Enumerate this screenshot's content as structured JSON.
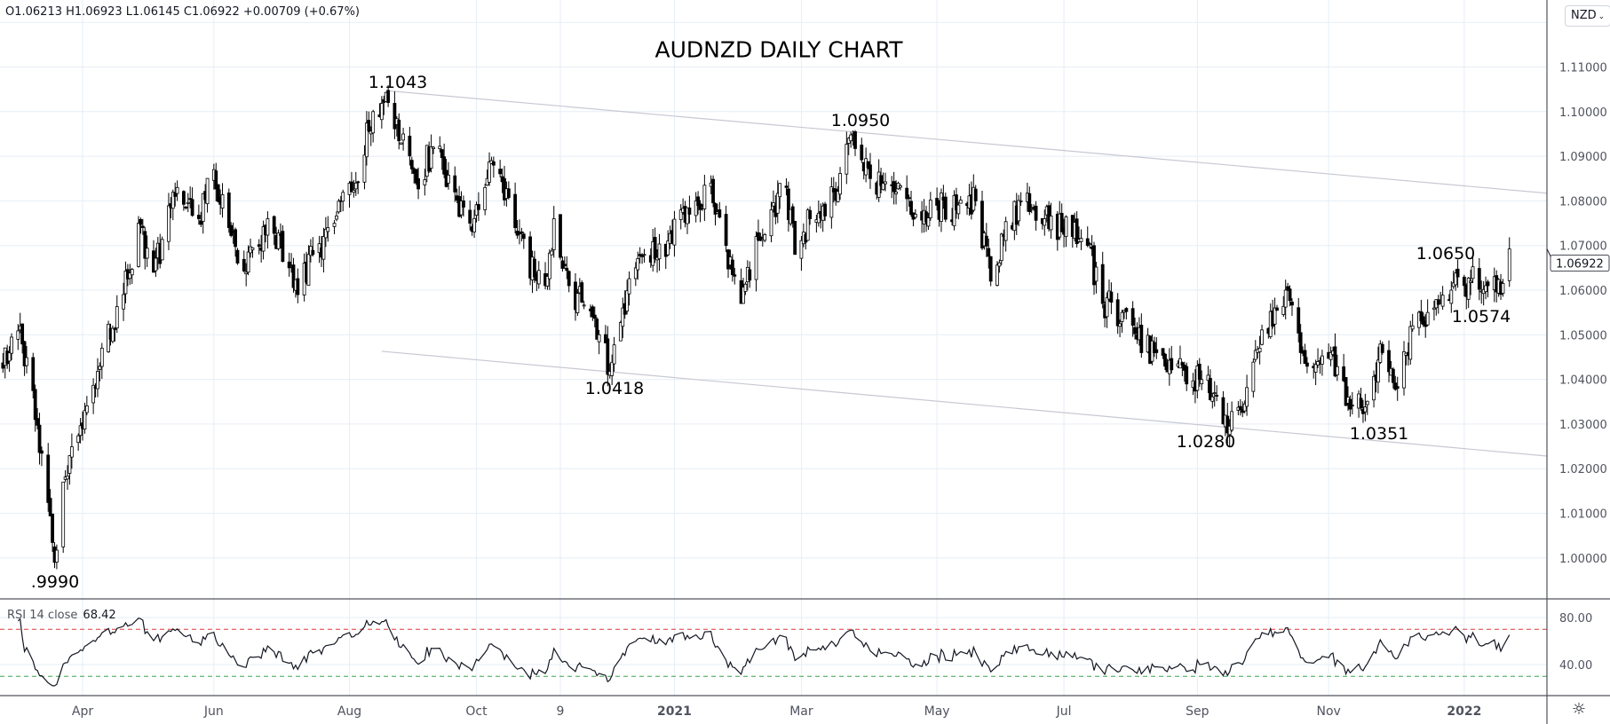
{
  "legend": {
    "ohlc_text": "O1.06213  H1.06923  L1.06145  C1.06922  +0.00709 (+0.67%)"
  },
  "title": "AUDNZD DAILY CHART",
  "currency_button": "NZD",
  "currency_button_icon": "chevron-down-icon",
  "settings_icon": "gear-icon",
  "annotations": [
    "1.1043",
    "1.0950",
    "1.0418",
    ".9990",
    "1.0280",
    "1.0351",
    "1.0650",
    "1.0574"
  ],
  "rsi_legend": {
    "label": "RSI 14 close",
    "value": "68.42"
  },
  "colors": {
    "grid": "#e6eef5",
    "candle": "#000000",
    "trendline": "#c8c8d4",
    "overbought": "#e03a3a",
    "oversold": "#3aa64a",
    "rsi_line": "#131722"
  },
  "chart_data": [
    {
      "type": "candlestick",
      "title": "AUDNZD DAILY CHART",
      "ylim": [
        0.99,
        1.12
      ],
      "grid": true,
      "y_ticks": [
        "1.11000",
        "1.10000",
        "1.09000",
        "1.08000",
        "1.07000",
        "1.06000",
        "1.05000",
        "1.04000",
        "1.03000",
        "1.02000",
        "1.01000",
        "1.00000"
      ],
      "y_tick_values": [
        1.11,
        1.1,
        1.09,
        1.08,
        1.07,
        1.06,
        1.05,
        1.04,
        1.03,
        1.02,
        1.01,
        1.0
      ],
      "last_price_label": "1.06922",
      "x_ticks": [
        {
          "label": "Apr",
          "date": "2020-04-01",
          "bold": false
        },
        {
          "label": "Jun",
          "date": "2020-06-01",
          "bold": false
        },
        {
          "label": "Aug",
          "date": "2020-08-03",
          "bold": false
        },
        {
          "label": "Oct",
          "date": "2020-10-01",
          "bold": false
        },
        {
          "label": "9",
          "date": "2020-11-09",
          "bold": false
        },
        {
          "label": "2021",
          "date": "2021-01-01",
          "bold": true
        },
        {
          "label": "Mar",
          "date": "2021-03-01",
          "bold": false
        },
        {
          "label": "May",
          "date": "2021-05-03",
          "bold": false
        },
        {
          "label": "Jul",
          "date": "2021-07-01",
          "bold": false
        },
        {
          "label": "Sep",
          "date": "2021-09-01",
          "bold": false
        },
        {
          "label": "Nov",
          "date": "2021-11-01",
          "bold": false
        },
        {
          "label": "2022",
          "date": "2022-01-03",
          "bold": true
        }
      ],
      "close_path": [
        [
          "2020-02-24",
          1.0425
        ],
        [
          "2020-03-03",
          1.052
        ],
        [
          "2020-03-10",
          1.031
        ],
        [
          "2020-03-19",
          0.999
        ],
        [
          "2020-03-23",
          1.017
        ],
        [
          "2020-04-01",
          1.029
        ],
        [
          "2020-04-10",
          1.047
        ],
        [
          "2020-04-20",
          1.059
        ],
        [
          "2020-04-27",
          1.075
        ],
        [
          "2020-05-04",
          1.064
        ],
        [
          "2020-05-15",
          1.083
        ],
        [
          "2020-05-25",
          1.076
        ],
        [
          "2020-06-01",
          1.087
        ],
        [
          "2020-06-08",
          1.074
        ],
        [
          "2020-06-16",
          1.064
        ],
        [
          "2020-06-26",
          1.076
        ],
        [
          "2020-07-06",
          1.065
        ],
        [
          "2020-07-10",
          1.059
        ],
        [
          "2020-07-17",
          1.068
        ],
        [
          "2020-07-27",
          1.075
        ],
        [
          "2020-08-06",
          1.084
        ],
        [
          "2020-08-14",
          1.1
        ],
        [
          "2020-08-20",
          1.1043
        ],
        [
          "2020-08-27",
          1.093
        ],
        [
          "2020-09-03",
          1.084
        ],
        [
          "2020-09-11",
          1.092
        ],
        [
          "2020-09-21",
          1.082
        ],
        [
          "2020-09-28",
          1.075
        ],
        [
          "2020-10-05",
          1.083
        ],
        [
          "2020-10-09",
          1.088
        ],
        [
          "2020-10-19",
          1.074
        ],
        [
          "2020-10-28",
          1.063
        ],
        [
          "2020-11-02",
          1.061
        ],
        [
          "2020-11-06",
          1.076
        ],
        [
          "2020-11-13",
          1.061
        ],
        [
          "2020-11-24",
          1.054
        ],
        [
          "2020-12-02",
          1.0418
        ],
        [
          "2020-12-08",
          1.056
        ],
        [
          "2020-12-18",
          1.068
        ],
        [
          "2020-12-29",
          1.071
        ],
        [
          "2021-01-08",
          1.077
        ],
        [
          "2021-01-18",
          1.084
        ],
        [
          "2021-01-25",
          1.07
        ],
        [
          "2021-02-01",
          1.057
        ],
        [
          "2021-02-08",
          1.072
        ],
        [
          "2021-02-15",
          1.078
        ],
        [
          "2021-02-22",
          1.083
        ],
        [
          "2021-02-26",
          1.068
        ],
        [
          "2021-03-05",
          1.076
        ],
        [
          "2021-03-16",
          1.082
        ],
        [
          "2021-03-25",
          1.095
        ],
        [
          "2021-04-02",
          1.085
        ],
        [
          "2021-04-14",
          1.082
        ],
        [
          "2021-04-23",
          1.077
        ],
        [
          "2021-05-03",
          1.079
        ],
        [
          "2021-05-12",
          1.078
        ],
        [
          "2021-05-21",
          1.08
        ],
        [
          "2021-05-28",
          1.062
        ],
        [
          "2021-06-03",
          1.072
        ],
        [
          "2021-06-11",
          1.08
        ],
        [
          "2021-06-22",
          1.076
        ],
        [
          "2021-07-05",
          1.072
        ],
        [
          "2021-07-12",
          1.07
        ],
        [
          "2021-07-19",
          1.057
        ],
        [
          "2021-07-28",
          1.055
        ],
        [
          "2021-08-04",
          1.049
        ],
        [
          "2021-08-13",
          1.046
        ],
        [
          "2021-08-23",
          1.0435
        ],
        [
          "2021-09-02",
          1.04
        ],
        [
          "2021-09-09",
          1.037
        ],
        [
          "2021-09-15",
          1.028
        ],
        [
          "2021-09-23",
          1.0345
        ],
        [
          "2021-09-30",
          1.047
        ],
        [
          "2021-10-07",
          1.056
        ],
        [
          "2021-10-12",
          1.06
        ],
        [
          "2021-10-19",
          1.046
        ],
        [
          "2021-10-27",
          1.044
        ],
        [
          "2021-11-02",
          1.046
        ],
        [
          "2021-11-10",
          1.036
        ],
        [
          "2021-11-19",
          1.0351
        ],
        [
          "2021-11-26",
          1.046
        ],
        [
          "2021-12-03",
          1.038
        ],
        [
          "2021-12-10",
          1.052
        ],
        [
          "2021-12-17",
          1.055
        ],
        [
          "2021-12-28",
          1.06
        ],
        [
          "2022-01-06",
          1.062
        ],
        [
          "2022-01-14",
          1.061
        ],
        [
          "2022-01-21",
          1.0615
        ],
        [
          "2022-01-24",
          1.06922
        ]
      ],
      "trendlines": [
        {
          "from": [
            "2020-08-20",
            1.1047
          ],
          "to": [
            "2022-02-11",
            1.0817
          ]
        },
        {
          "from": [
            "2020-08-18",
            1.0463
          ],
          "to": [
            "2022-02-11",
            1.0228
          ]
        }
      ]
    },
    {
      "type": "line",
      "name": "RSI 14 close",
      "last_value": 68.42,
      "ylim": [
        20,
        90
      ],
      "y_ticks": [
        "80.00",
        "40.00"
      ],
      "y_tick_values": [
        80,
        40
      ],
      "levels": {
        "overbought": 70,
        "oversold": 30
      }
    }
  ]
}
